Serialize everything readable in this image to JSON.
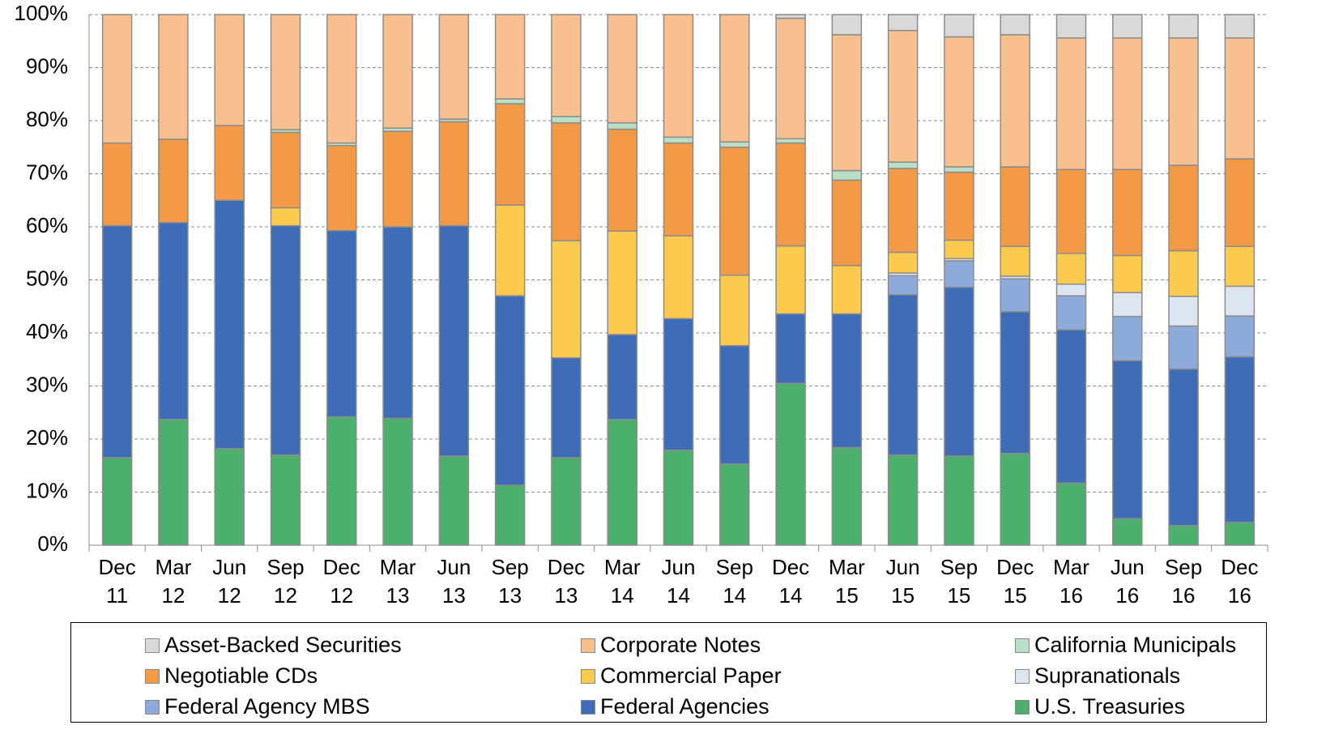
{
  "chart_data": {
    "type": "stacked-bar",
    "categories": [
      "Dec 11",
      "Mar 12",
      "Jun 12",
      "Sep 12",
      "Dec 12",
      "Mar 13",
      "Jun 13",
      "Sep 13",
      "Dec 13",
      "Mar 14",
      "Jun 14",
      "Sep 14",
      "Dec 14",
      "Mar 15",
      "Jun 15",
      "Sep 15",
      "Dec 15",
      "Mar 16",
      "Jun 16",
      "Sep 16",
      "Dec 16"
    ],
    "ylim": [
      0,
      100
    ],
    "yticks": [
      {
        "value": 0,
        "label": "0%"
      },
      {
        "value": 10,
        "label": "10%"
      },
      {
        "value": 20,
        "label": "20%"
      },
      {
        "value": 30,
        "label": "30%"
      },
      {
        "value": 40,
        "label": "40%"
      },
      {
        "value": 50,
        "label": "50%"
      },
      {
        "value": 60,
        "label": "60%"
      },
      {
        "value": 70,
        "label": "70%"
      },
      {
        "value": 80,
        "label": "80%"
      },
      {
        "value": 90,
        "label": "90%"
      },
      {
        "value": 100,
        "label": "100%"
      }
    ],
    "grid": true,
    "series": [
      {
        "name": "Asset-Backed Securities",
        "color": "#d9d9d9",
        "values": [
          0,
          0,
          0,
          0,
          0,
          0,
          0,
          0,
          0,
          0,
          0,
          0,
          0.7,
          3.8,
          3,
          4.2,
          3.8,
          4.4,
          4.4,
          4.4,
          4.4
        ]
      },
      {
        "name": "Corporate Notes",
        "color": "#f9c08f",
        "values": [
          24.2,
          23.5,
          20.9,
          21.7,
          24.2,
          21.4,
          19.7,
          15.9,
          19.2,
          20.4,
          23.1,
          24,
          22.7,
          25.6,
          24.8,
          24.5,
          24.9,
          24.8,
          24.8,
          24,
          22.8
        ]
      },
      {
        "name": "California Municipals",
        "color": "#b9e0c4",
        "values": [
          0,
          0,
          0,
          0.5,
          0.5,
          0.6,
          0.5,
          0.9,
          1.2,
          1.2,
          1.1,
          1,
          0.8,
          1.8,
          1.2,
          1,
          0,
          0,
          0,
          0,
          0
        ]
      },
      {
        "name": "Negotiable CDs",
        "color": "#f39a48",
        "values": [
          15.6,
          15.7,
          14.1,
          14.2,
          16,
          18,
          19.6,
          19.1,
          22.2,
          19.2,
          17.5,
          24.1,
          19.4,
          16.1,
          15.8,
          12.8,
          15,
          15.8,
          16.2,
          16.1,
          16.5
        ]
      },
      {
        "name": "Commercial Paper",
        "color": "#fdca50",
        "values": [
          0,
          0,
          0,
          3.4,
          0,
          0,
          0,
          17.1,
          22.1,
          19.5,
          15.6,
          13.3,
          12.8,
          9.1,
          3.9,
          3.5,
          5.6,
          5.8,
          7,
          8.6,
          7.5
        ]
      },
      {
        "name": "Supranationals",
        "color": "#dde4f2",
        "values": [
          0,
          0,
          0,
          0,
          0,
          0,
          0,
          0,
          0,
          0,
          0,
          0,
          0,
          0,
          0.5,
          0.4,
          0.5,
          2.2,
          4.5,
          5.6,
          5.6
        ]
      },
      {
        "name": "Federal Agency MBS",
        "color": "#8eaadb",
        "values": [
          0,
          0,
          0,
          0,
          0,
          0,
          0,
          0,
          0,
          0,
          0,
          0,
          0,
          0,
          3.6,
          5,
          6.2,
          6.4,
          8.3,
          8.1,
          7.7
        ]
      },
      {
        "name": "Federal Agencies",
        "color": "#3f6cb6",
        "values": [
          43.7,
          37.1,
          46.8,
          43.2,
          35.1,
          36.1,
          43.4,
          35.7,
          18.8,
          16,
          24.8,
          22.3,
          13.1,
          25.2,
          30.2,
          31.8,
          26.7,
          28.9,
          29.8,
          29.5,
          31.2
        ]
      },
      {
        "name": "U.S. Treasuries",
        "color": "#4caf6e",
        "values": [
          16.5,
          23.7,
          18.2,
          17,
          24.2,
          23.9,
          16.8,
          11.3,
          16.5,
          23.7,
          17.9,
          15.3,
          30.5,
          18.4,
          17,
          16.8,
          17.3,
          11.7,
          5,
          3.7,
          4.3
        ]
      }
    ]
  }
}
